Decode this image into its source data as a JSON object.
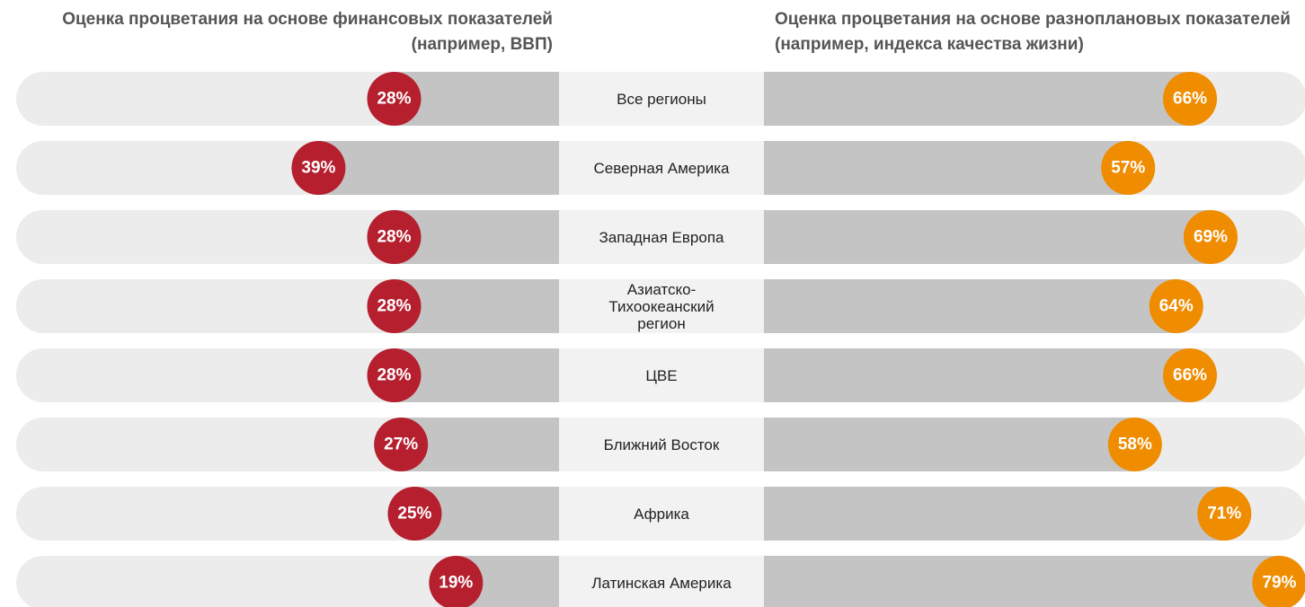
{
  "chart_data": {
    "type": "butterfly",
    "categories": [
      "Все регионы",
      "Северная Америка",
      "Западная Европа",
      "Азиатско-Тихоокеанский регион",
      "ЦВЕ",
      "Ближний Восток",
      "Африка",
      "Латинская Америка"
    ],
    "series": [
      {
        "name": "Оценка процветания на основе финансовых показателей (например, ВВП)",
        "color": "#b51f2e",
        "values": [
          28,
          39,
          28,
          28,
          28,
          27,
          25,
          19
        ],
        "value_labels": [
          "28%",
          "39%",
          "28%",
          "28%",
          "28%",
          "27%",
          "25%",
          "19%"
        ]
      },
      {
        "name": "Оценка процветания на основе разноплановых показателей (например, индекса качества жизни)",
        "color": "#ef8c00",
        "values": [
          66,
          57,
          69,
          64,
          66,
          58,
          71,
          79
        ],
        "value_labels": [
          "66%",
          "57%",
          "69%",
          "64%",
          "66%",
          "58%",
          "71%",
          "79%"
        ]
      }
    ],
    "xlim": [
      4,
      83
    ]
  }
}
